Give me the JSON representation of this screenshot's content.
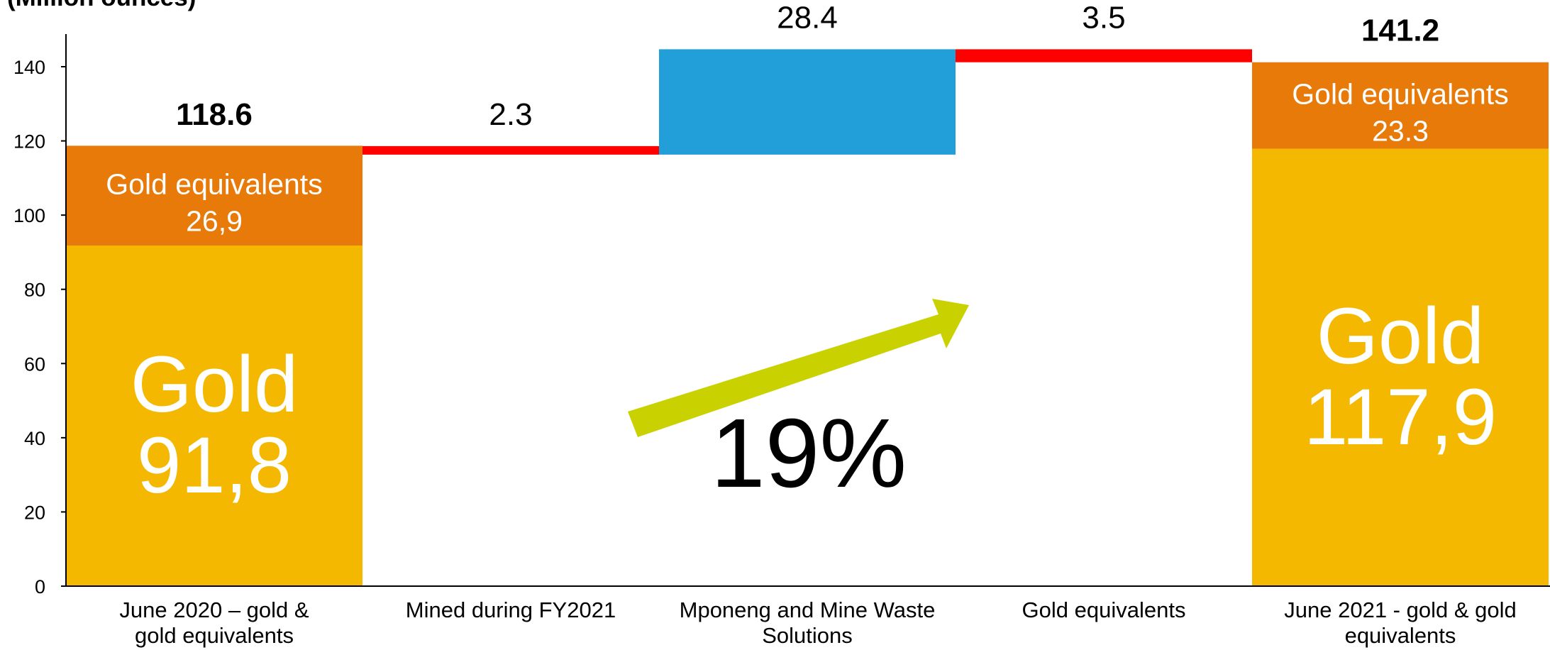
{
  "chart_data": {
    "type": "bar",
    "subtype": "waterfall",
    "ylabel": "(Million ounces)",
    "ylim": [
      0,
      140
    ],
    "yticks": [
      0,
      20,
      40,
      60,
      80,
      100,
      120,
      140
    ],
    "categories": [
      [
        "June 2020 – gold &",
        "gold equivalents"
      ],
      [
        "Mined during FY2021"
      ],
      [
        "Mponeng and Mine Waste",
        "Solutions"
      ],
      [
        "Gold equivalents"
      ],
      [
        "June 2021 - gold & gold",
        "equivalents"
      ]
    ],
    "bars": [
      {
        "kind": "total",
        "total": 118.6,
        "total_label": "118.6",
        "segments": [
          {
            "name": "Gold",
            "value": 91.8,
            "label": [
              "Gold",
              "91,8"
            ],
            "color": "#F5B800",
            "size": "large"
          },
          {
            "name": "Gold equivalents",
            "value": 26.9,
            "label": [
              "Gold equivalents",
              "26,9"
            ],
            "color": "#E87A0A",
            "size": "small"
          }
        ]
      },
      {
        "kind": "decrease",
        "start": 118.6,
        "end": 116.3,
        "value": 2.3,
        "label": "2.3",
        "color": "#FF0000"
      },
      {
        "kind": "increase",
        "start": 116.3,
        "end": 144.7,
        "value": 28.4,
        "label": "28.4",
        "color": "#229ED9"
      },
      {
        "kind": "decrease",
        "start": 144.7,
        "end": 141.2,
        "value": 3.5,
        "label": "3.5",
        "color": "#FF0000"
      },
      {
        "kind": "total",
        "total": 141.2,
        "total_label": "141.2",
        "segments": [
          {
            "name": "Gold",
            "value": 117.9,
            "label": [
              "Gold",
              "117,9"
            ],
            "color": "#F5B800",
            "size": "large"
          },
          {
            "name": "Gold equivalents",
            "value": 23.3,
            "label": [
              "Gold equivalents",
              "23.3"
            ],
            "color": "#E87A0A",
            "size": "small"
          }
        ]
      }
    ],
    "annotation": {
      "text": "19%",
      "arrow_color": "#C9D200"
    }
  }
}
